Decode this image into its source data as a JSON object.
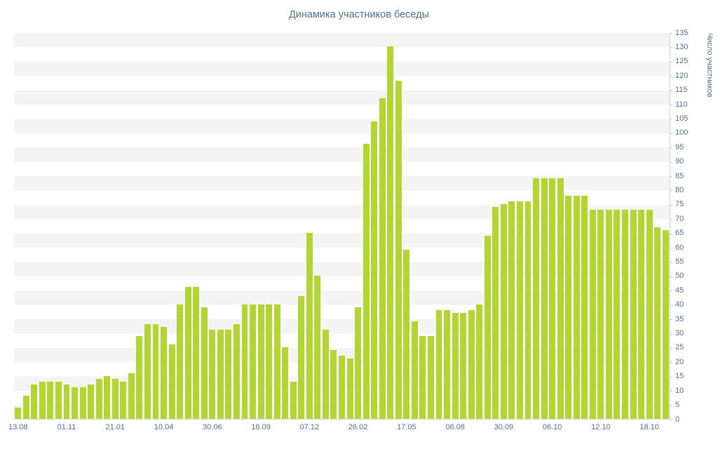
{
  "title": "Динамика участников беседы",
  "chart_data": {
    "type": "bar",
    "title": "Динамика участников беседы",
    "xlabel": "",
    "ylabel": "Число участников",
    "ylim": [
      0,
      135
    ],
    "y_step": 5,
    "y_tick_labels": [
      "0",
      "5",
      "10",
      "15",
      "20",
      "25",
      "30",
      "35",
      "40",
      "45",
      "50",
      "55",
      "60",
      "65",
      "70",
      "75",
      "80",
      "85",
      "90",
      "95",
      "100",
      "105",
      "110",
      "115",
      "120",
      "125",
      "130",
      "135"
    ],
    "x_tick_labels": [
      "13.08",
      "01.11",
      "21.01",
      "10.04",
      "30.06",
      "18.09",
      "07.12",
      "26.02",
      "17.05",
      "06.08",
      "30.09",
      "06.10",
      "12.10",
      "18.10"
    ],
    "x_tick_indices": [
      0,
      6,
      12,
      18,
      24,
      30,
      36,
      42,
      48,
      54,
      60,
      66,
      72,
      78
    ],
    "values": [
      4,
      8,
      12,
      13,
      13,
      13,
      12,
      11,
      11,
      12,
      14,
      15,
      14,
      13,
      16,
      29,
      33,
      33,
      32,
      26,
      40,
      46,
      46,
      39,
      31,
      31,
      31,
      33,
      40,
      40,
      40,
      40,
      40,
      25,
      13,
      43,
      65,
      50,
      31,
      24,
      22,
      21,
      39,
      96,
      104,
      112,
      130,
      118,
      59,
      34,
      29,
      29,
      38,
      38,
      37,
      37,
      38,
      40,
      64,
      74,
      75,
      76,
      76,
      76,
      84,
      84,
      84,
      84,
      78,
      78,
      78,
      73,
      73,
      73,
      73,
      73,
      73,
      73,
      73,
      67,
      66
    ],
    "legend": null,
    "grid": "alternating horizontal bands every 5 units"
  },
  "colors": {
    "bar": "#b3d531",
    "text": "#4d7199",
    "stripe": "#f4f4f4",
    "axis": "#c6cfd9",
    "background": "#ffffff"
  }
}
